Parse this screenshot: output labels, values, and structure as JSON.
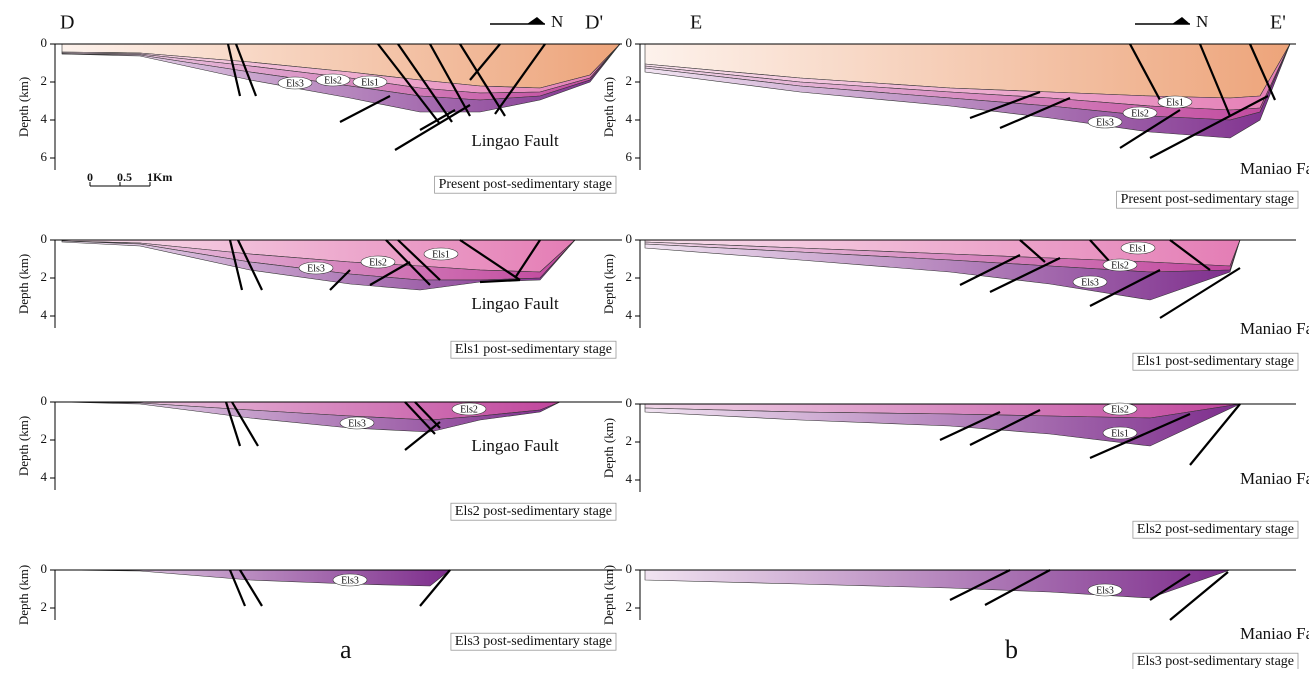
{
  "sections": [
    {
      "start": "D",
      "end": "D'",
      "north": "N",
      "label": "a",
      "scale": [
        "0",
        "0.5",
        "1Km"
      ],
      "panels": [
        {
          "depth_label": "Depth (km)",
          "ticks": [
            0,
            2,
            4,
            6
          ],
          "units": [
            "Els3",
            "Els2",
            "Els1"
          ],
          "fault": "Lingao Fault",
          "stage": "Present post-sedimentary stage"
        },
        {
          "depth_label": "Depth (km)",
          "ticks": [
            0,
            2,
            4
          ],
          "units": [
            "Els3",
            "Els2",
            "Els1"
          ],
          "fault": "Lingao Fault",
          "stage": "Els1 post-sedimentary stage"
        },
        {
          "depth_label": "Depth (km)",
          "ticks": [
            0,
            2,
            4
          ],
          "units": [
            "Els3",
            "Els2"
          ],
          "fault": "Lingao Fault",
          "stage": "Els2 post-sedimentary stage"
        },
        {
          "depth_label": "Depth (km)",
          "ticks": [
            0,
            2
          ],
          "units": [
            "Els3"
          ],
          "stage": "Els3 post-sedimentary stage"
        }
      ]
    },
    {
      "start": "E",
      "end": "E'",
      "north": "N",
      "label": "b",
      "panels": [
        {
          "depth_label": "Depth (km)",
          "ticks": [
            0,
            2,
            4,
            6
          ],
          "units": [
            "Els3",
            "Els2",
            "Els1"
          ],
          "fault": "Maniao Fault",
          "stage": "Present post-sedimentary stage"
        },
        {
          "depth_label": "Depth (km)",
          "ticks": [
            0,
            2,
            4
          ],
          "units": [
            "Els3",
            "Els2",
            "Els1"
          ],
          "fault": "Maniao Fault",
          "stage": "Els1 post-sedimentary stage"
        },
        {
          "depth_label": "Depth (km)",
          "ticks": [
            0,
            2,
            4
          ],
          "units": [
            "Els1",
            "Els2"
          ],
          "fault": "Maniao Fault",
          "stage": "Els2 post-sedimentary stage"
        },
        {
          "depth_label": "Depth (km)",
          "ticks": [
            0,
            2
          ],
          "units": [
            "Els3"
          ],
          "fault": "Maniao Fault",
          "stage": "Els3 post-sedimentary stage"
        }
      ]
    }
  ]
}
